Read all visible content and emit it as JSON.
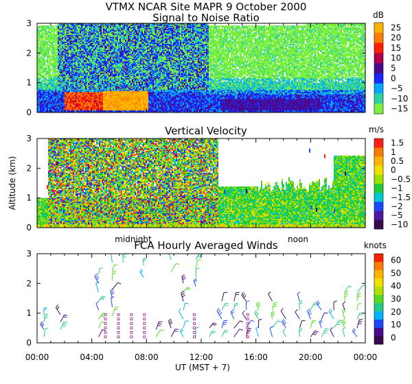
{
  "figure": {
    "header": "VTMX   NCAR Site   MAPR   9 October 2000",
    "ylabel": "Altitude (km)",
    "xlabel": "UT  (MST + 7)",
    "annotations": [
      "midnight",
      "noon"
    ]
  },
  "chart_data": [
    {
      "type": "heatmap",
      "title": "Signal to Noise Ratio",
      "units": "dB",
      "ylim": [
        0,
        3
      ],
      "yticks": [
        0,
        1,
        2,
        3
      ],
      "xlim": [
        0,
        24
      ],
      "colorbar": {
        "labels": [
          "25",
          "20",
          "15",
          "10",
          "5",
          "0",
          "−5",
          "−10",
          "−15"
        ],
        "colors": [
          "#ffb300",
          "#ff7a00",
          "#ff1e00",
          "#b0004a",
          "#4a0a8c",
          "#1a28ff",
          "#00a8ff",
          "#2fd1a0",
          "#7cf03c"
        ]
      }
    },
    {
      "type": "heatmap",
      "title": "Vertical Velocity",
      "units": "m/s",
      "ylim": [
        0,
        3
      ],
      "yticks": [
        0,
        1,
        2,
        3
      ],
      "xlim": [
        0,
        24
      ],
      "colorbar": {
        "labels": [
          "1.5",
          "1",
          "0.5",
          "0",
          "−0.5",
          "−1",
          "−1.5",
          "−2",
          "−5",
          "−10"
        ],
        "colors": [
          "#ff1e1e",
          "#ff7a00",
          "#ffb300",
          "#f0e000",
          "#9ee000",
          "#22cc33",
          "#00c8d0",
          "#1a48ff",
          "#4a1aa0",
          "#3a0a50"
        ]
      }
    },
    {
      "type": "scatter",
      "title": "FCA Hourly Averaged Winds",
      "units": "knots",
      "xlabel": "UT  (MST + 7)",
      "ylim": [
        0,
        3
      ],
      "yticks": [
        0,
        1,
        2,
        3
      ],
      "xlim": [
        0,
        24
      ],
      "xticks": [
        "00:00",
        "04:00",
        "08:00",
        "12:00",
        "16:00",
        "20:00",
        "00:00"
      ],
      "colorbar": {
        "labels": [
          "60",
          "50",
          "40",
          "30",
          "20",
          "10",
          "0"
        ],
        "colors": [
          "#ff1e00",
          "#ff7a00",
          "#ffb300",
          "#f0e000",
          "#b4e000",
          "#55dd22",
          "#22cc88",
          "#00b4ff",
          "#1a48ff",
          "#4a0a8c",
          "#3a0a50"
        ]
      }
    }
  ]
}
